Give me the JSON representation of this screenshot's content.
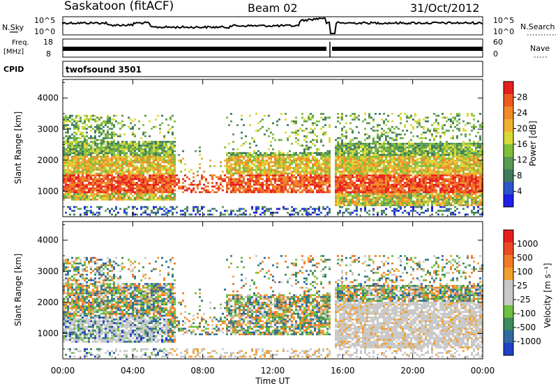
{
  "header": {
    "station": "Saskatoon (fitACF)",
    "beam": "Beam 02",
    "date": "31/Oct/2012"
  },
  "top_panels": {
    "nsky": {
      "left_label": "N.Sky",
      "ticks_left": [
        "10^5",
        "10^0"
      ],
      "ticks_right": [
        "10^5",
        "10^0"
      ],
      "right_label": "N.Search"
    },
    "freq": {
      "left_label_1": "Freq.",
      "left_label_2": "[MHz]",
      "ticks_left": [
        "18",
        "8"
      ],
      "ticks_right": [
        "60",
        "0"
      ],
      "right_label": "Nave"
    },
    "cpid": {
      "left_label": "CPID",
      "program": "twofsound 3501"
    }
  },
  "x_axis": {
    "label": "Time UT",
    "ticks": [
      "00:00",
      "04:00",
      "08:00",
      "12:00",
      "16:00",
      "20:00",
      "00:00"
    ]
  },
  "chart_data": [
    {
      "type": "heatmap",
      "panel": "power",
      "ylabel": "Slant Range [km]",
      "y_ticks": [
        1000,
        2000,
        3000,
        4000
      ],
      "ylim": [
        180,
        4600
      ],
      "xlim_hours": [
        0,
        24
      ],
      "colorbar": {
        "label": "Power [dB]",
        "ticks": [
          "4",
          "8",
          "12",
          "16",
          "20",
          "24",
          "28"
        ],
        "colors": [
          "#1e1ee6",
          "#2a55c8",
          "#3f7a5e",
          "#5a9a52",
          "#7fbf3a",
          "#d8d836",
          "#f0b030",
          "#f08a28",
          "#ec5a20",
          "#e61e1e"
        ]
      }
    },
    {
      "type": "heatmap",
      "panel": "velocity",
      "ylabel": "Slant Range [km]",
      "y_ticks": [
        1000,
        2000,
        3000,
        4000
      ],
      "ylim": [
        180,
        4600
      ],
      "xlim_hours": [
        0,
        24
      ],
      "colorbar": {
        "label": "Velocity [m s⁻¹]",
        "ticks": [
          "1000",
          "500",
          "100",
          "25",
          "-25",
          "-100",
          "-500",
          "-1000"
        ],
        "colors": [
          "#2040c8",
          "#2f6aa0",
          "#3f8a5a",
          "#6ec040",
          "#c8c8c8",
          "#c8c8c8",
          "#f0a030",
          "#f07a28",
          "#ec4a20",
          "#e61e1e"
        ]
      }
    }
  ]
}
